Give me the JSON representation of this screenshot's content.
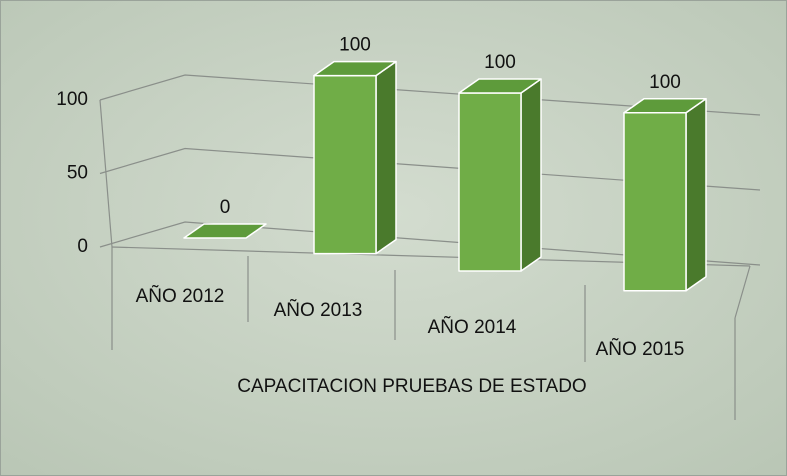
{
  "chart_data": {
    "type": "bar3d",
    "categories": [
      "AÑO 2012",
      "AÑO 2013",
      "AÑO 2014",
      "AÑO 2015"
    ],
    "values": [
      0,
      100,
      100,
      100
    ],
    "color": "#70ad47",
    "x_label": "CAPACITACION PRUEBAS DE ESTADO",
    "ylim": [
      0,
      100
    ],
    "yticks": [
      0,
      50,
      100
    ],
    "grid": true
  }
}
